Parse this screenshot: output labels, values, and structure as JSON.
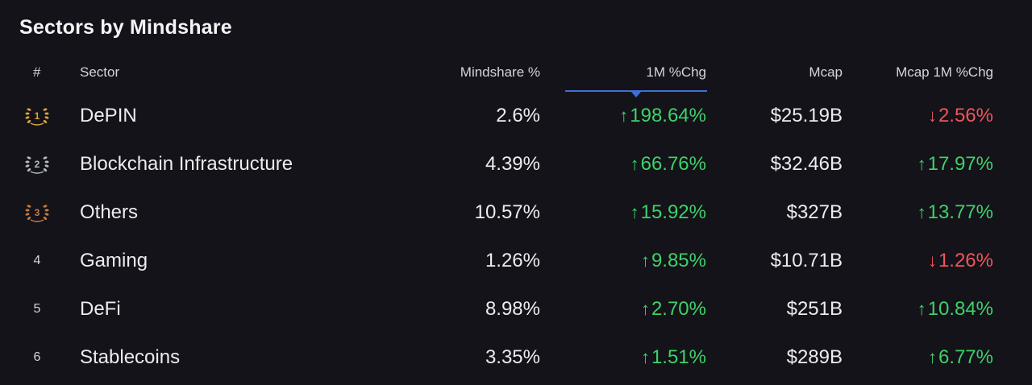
{
  "title": "Sectors by Mindshare",
  "headers": {
    "rank": "#",
    "sector": "Sector",
    "mindshare": "Mindshare %",
    "change_1m": "1M %Chg",
    "mcap": "Mcap",
    "mcap_change_1m": "Mcap 1M %Chg"
  },
  "sorted_by": "1M %Chg",
  "colors": {
    "background": "#131319",
    "positive": "#3fd169",
    "negative": "#f0545b",
    "sort_indicator": "#3f6fd6",
    "gold": "#d9a73c",
    "silver": "#b9bcc4",
    "bronze": "#c47b45"
  },
  "rows": [
    {
      "rank": "1",
      "badge": "gold-laurel-icon",
      "sector": "DePIN",
      "mindshare": "2.6%",
      "change_1m": "198.64%",
      "change_1m_dir": "up",
      "mcap": "$25.19B",
      "mcap_change_1m": "2.56%",
      "mcap_change_1m_dir": "down"
    },
    {
      "rank": "2",
      "badge": "silver-laurel-icon",
      "sector": "Blockchain Infrastructure",
      "mindshare": "4.39%",
      "change_1m": "66.76%",
      "change_1m_dir": "up",
      "mcap": "$32.46B",
      "mcap_change_1m": "17.97%",
      "mcap_change_1m_dir": "up"
    },
    {
      "rank": "3",
      "badge": "bronze-laurel-icon",
      "sector": "Others",
      "mindshare": "10.57%",
      "change_1m": "15.92%",
      "change_1m_dir": "up",
      "mcap": "$327B",
      "mcap_change_1m": "13.77%",
      "mcap_change_1m_dir": "up"
    },
    {
      "rank": "4",
      "badge": "",
      "sector": "Gaming",
      "mindshare": "1.26%",
      "change_1m": "9.85%",
      "change_1m_dir": "up",
      "mcap": "$10.71B",
      "mcap_change_1m": "1.26%",
      "mcap_change_1m_dir": "down"
    },
    {
      "rank": "5",
      "badge": "",
      "sector": "DeFi",
      "mindshare": "8.98%",
      "change_1m": "2.70%",
      "change_1m_dir": "up",
      "mcap": "$251B",
      "mcap_change_1m": "10.84%",
      "mcap_change_1m_dir": "up"
    },
    {
      "rank": "6",
      "badge": "",
      "sector": "Stablecoins",
      "mindshare": "3.35%",
      "change_1m": "1.51%",
      "change_1m_dir": "up",
      "mcap": "$289B",
      "mcap_change_1m": "6.77%",
      "mcap_change_1m_dir": "up"
    }
  ]
}
